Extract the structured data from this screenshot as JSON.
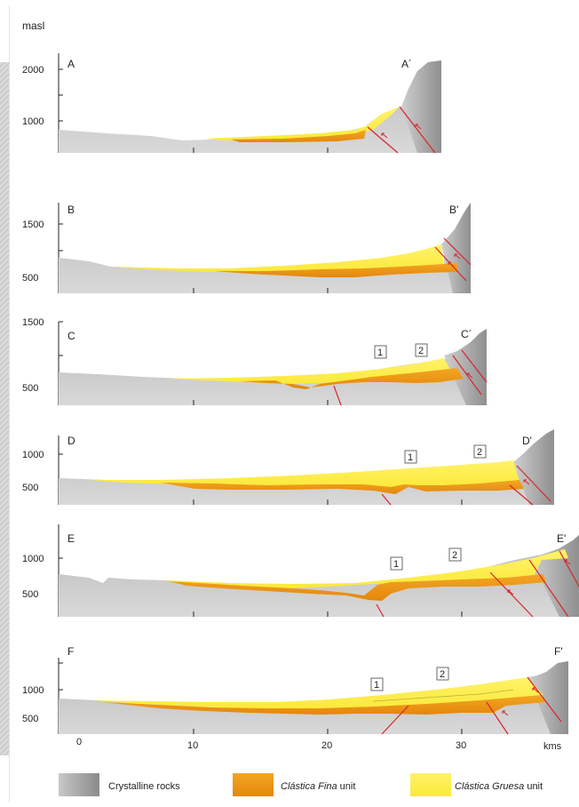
{
  "figure": {
    "unit_label": "masl",
    "distance_unit": "kms",
    "distance_ticks": [
      "0",
      "10",
      "20",
      "30"
    ]
  },
  "sections": [
    {
      "id": "A",
      "start": "A",
      "end": "A´",
      "ticks": [
        "2000",
        "1000"
      ],
      "markers": []
    },
    {
      "id": "B",
      "start": "B",
      "end": "B'",
      "ticks": [
        "1500",
        "500"
      ],
      "markers": []
    },
    {
      "id": "C",
      "start": "C",
      "end": "C´",
      "ticks": [
        "1500",
        "500"
      ],
      "markers": [
        "1",
        "2"
      ]
    },
    {
      "id": "D",
      "start": "D",
      "end": "D'",
      "ticks": [
        "1000",
        "500"
      ],
      "markers": [
        "1",
        "2"
      ]
    },
    {
      "id": "E",
      "start": "E",
      "end": "E'",
      "ticks": [
        "1000",
        "500"
      ],
      "markers": [
        "1",
        "2"
      ]
    },
    {
      "id": "F",
      "start": "F",
      "end": "F'",
      "ticks": [
        "1000",
        "500"
      ],
      "markers": [
        "1",
        "2"
      ]
    }
  ],
  "legend": [
    {
      "label": "Crystalline rocks",
      "italic_part": "",
      "color": "#a8a8a8"
    },
    {
      "label": " unit",
      "italic_part": "Clástica Fina",
      "color": "#f0a020"
    },
    {
      "label": " unit",
      "italic_part": "Clástica Gruesa",
      "color": "#fbf47a"
    }
  ],
  "colors": {
    "crystalline": "#a9a9a9",
    "fina": "#ef9b17",
    "gruesa": "#fcf45a",
    "gruesa_light": "#fdf9a8",
    "fault": "#d8242c"
  }
}
